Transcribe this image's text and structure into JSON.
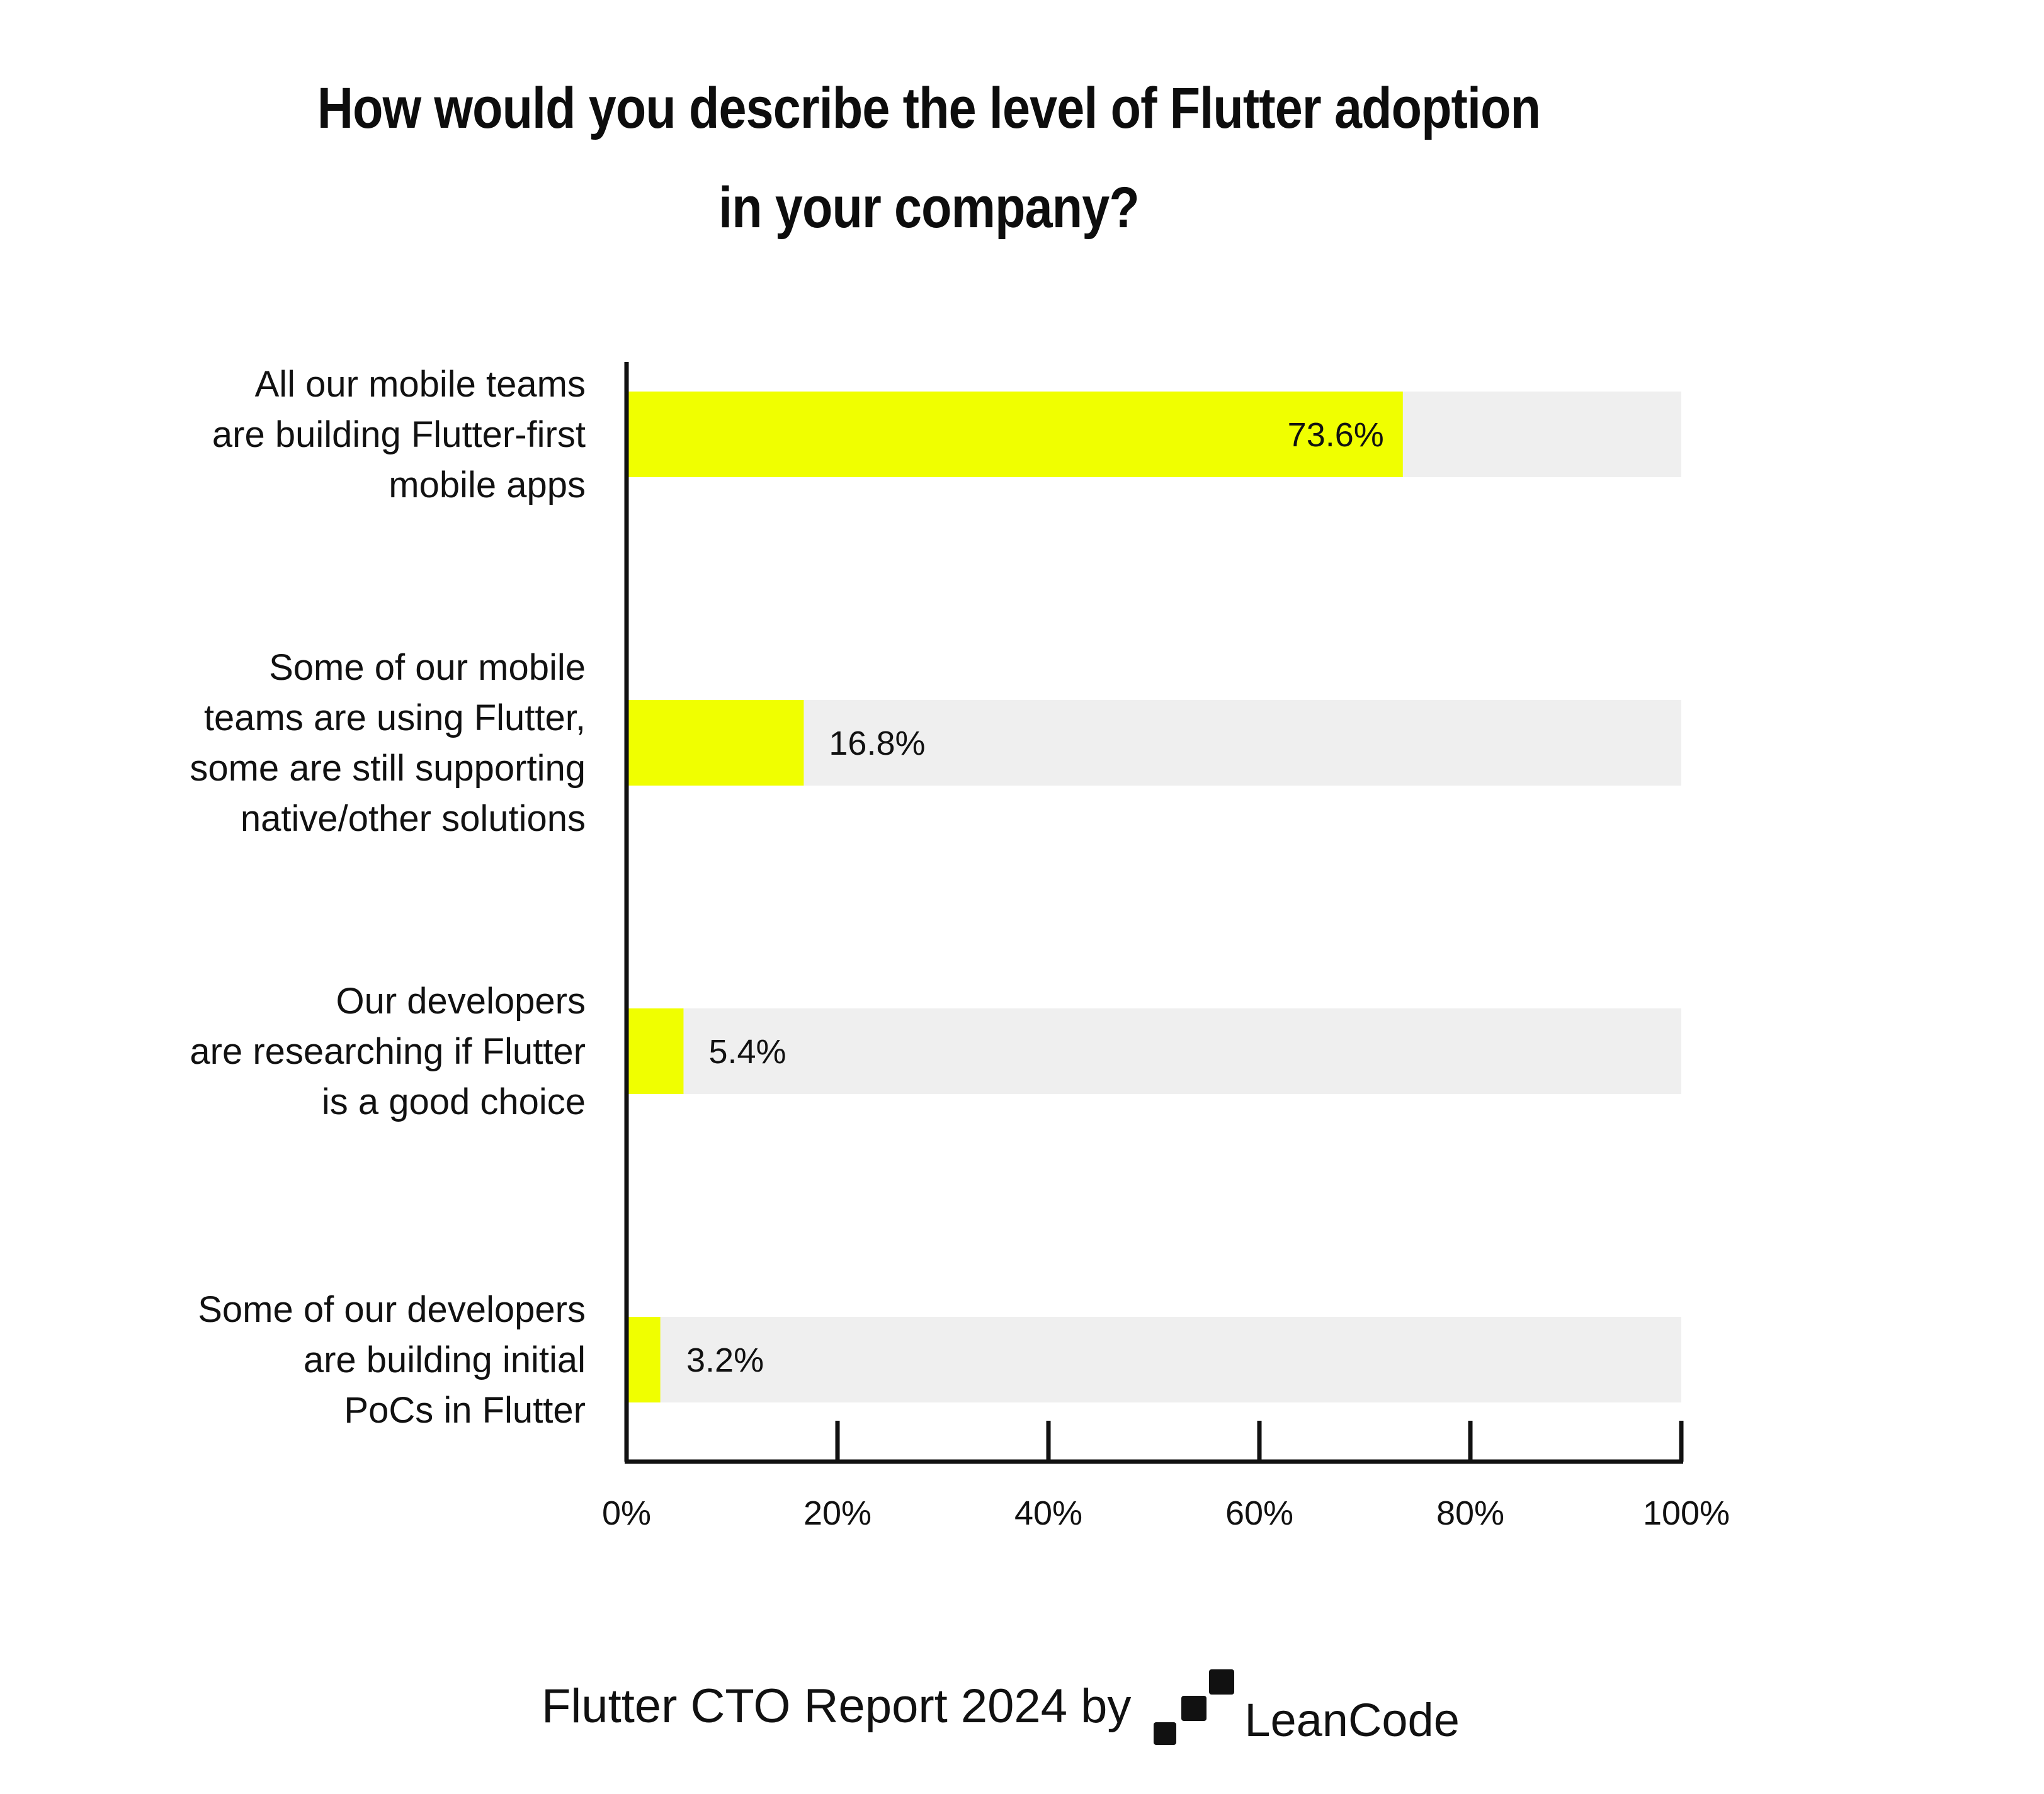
{
  "chart_data": {
    "type": "bar",
    "orientation": "horizontal",
    "title_lines": [
      "How would you describe the level of Flutter adoption",
      "in your company?"
    ],
    "categories": [
      [
        "All our mobile teams",
        "are building Flutter-first",
        "mobile apps"
      ],
      [
        "Some of our mobile",
        "teams are using Flutter,",
        "some are still supporting",
        "native/other solutions"
      ],
      [
        "Our developers",
        "are researching if Flutter",
        "is a good choice"
      ],
      [
        "Some of our developers",
        "are building initial",
        "PoCs in Flutter"
      ]
    ],
    "values": [
      73.6,
      16.8,
      5.4,
      3.2
    ],
    "value_labels": [
      "73.6%",
      "16.8%",
      "5.4%",
      "3.2%"
    ],
    "xlim": [
      0,
      100
    ],
    "ticks": [
      0,
      20,
      40,
      60,
      80,
      100
    ],
    "tick_labels": [
      "0%",
      "20%",
      "40%",
      "60%",
      "80%",
      "100%"
    ],
    "grid": false,
    "colors": {
      "bar": "#f0ff00",
      "track": "#efefef",
      "axis": "#111111"
    }
  },
  "footer": {
    "report_label": "Flutter CTO Report 2024 by",
    "brand": "LeanCode",
    "logo_icon": "leancode-stairs-icon"
  }
}
